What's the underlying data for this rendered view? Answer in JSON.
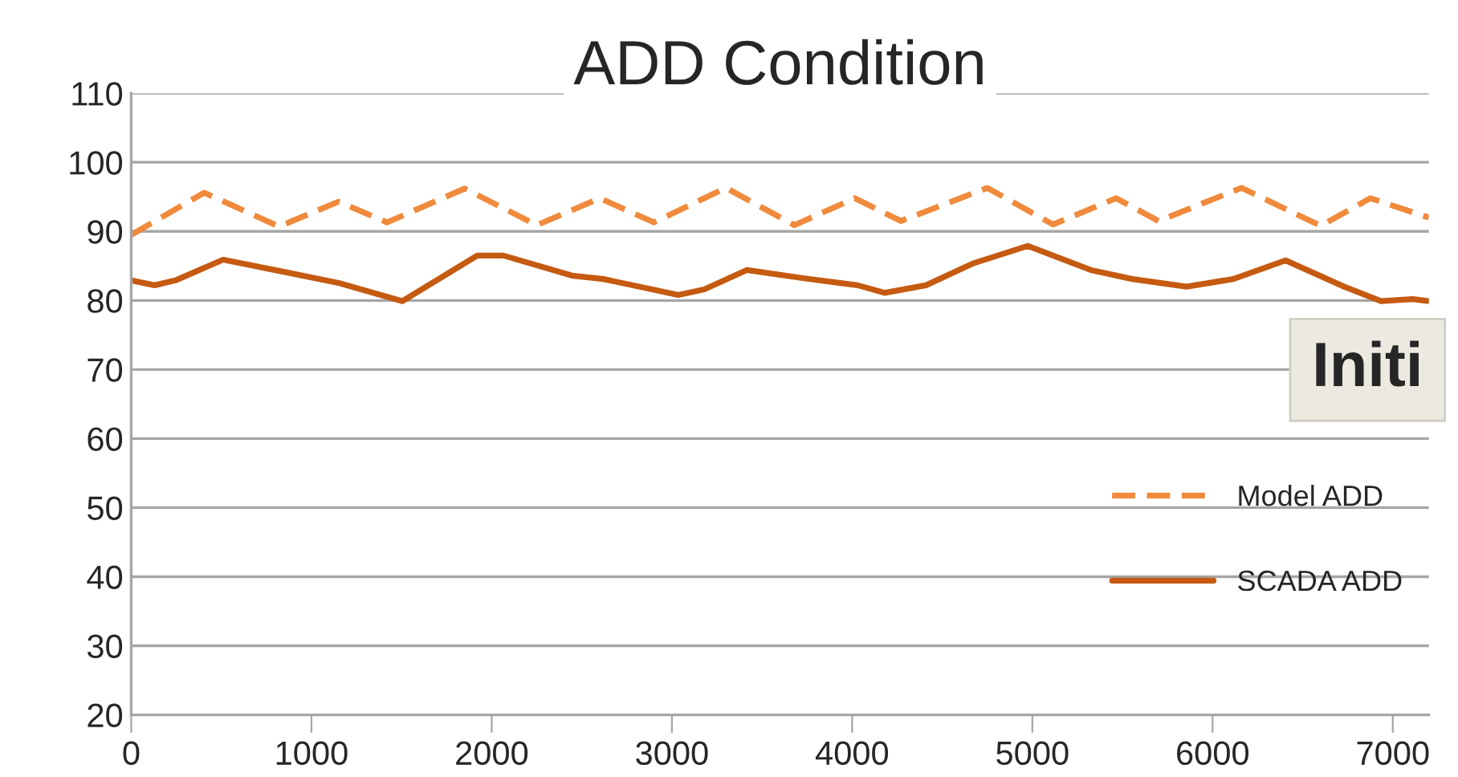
{
  "chart_data": {
    "type": "line",
    "title": "ADD Condition",
    "xlim": [
      0,
      7200
    ],
    "xticks": [
      0,
      1000,
      2000,
      3000,
      4000,
      5000,
      6000,
      7000
    ],
    "ylim": [
      20,
      110
    ],
    "yticks": [
      20,
      30,
      40,
      50,
      60,
      70,
      80,
      90,
      100,
      110
    ],
    "grid": "y",
    "legend": "right",
    "marker": "none",
    "annotations": [
      "Initi"
    ],
    "series": [
      {
        "name": "Model ADD",
        "color": "#f08a3c",
        "line_style": "dashed",
        "x": [
          0,
          405,
          820,
          1150,
          1420,
          1850,
          2250,
          2600,
          2900,
          3300,
          3680,
          4015,
          4270,
          4750,
          5115,
          5465,
          5700,
          6160,
          6600,
          6875,
          7200
        ],
        "values": [
          89.5,
          95.6,
          90.7,
          94.3,
          91.3,
          96.2,
          90.9,
          94.8,
          91.3,
          96.3,
          90.9,
          94.8,
          91.5,
          96.3,
          91.0,
          94.8,
          91.5,
          96.3,
          90.8,
          94.8,
          92.0
        ]
      },
      {
        "name": "SCADA ADD",
        "color": "#c55a11",
        "line_style": "solid",
        "x": [
          0,
          130,
          245,
          510,
          835,
          1155,
          1505,
          1920,
          2065,
          2445,
          2620,
          2890,
          3035,
          3180,
          3415,
          3735,
          4030,
          4180,
          4410,
          4675,
          4975,
          5325,
          5555,
          5855,
          6115,
          6405,
          6730,
          6935,
          7110,
          7200
        ],
        "values": [
          82.9,
          82.2,
          82.9,
          85.9,
          84.2,
          82.5,
          79.9,
          86.5,
          86.5,
          83.6,
          83.1,
          81.6,
          80.8,
          81.6,
          84.4,
          83.2,
          82.2,
          81.1,
          82.2,
          85.4,
          87.9,
          84.4,
          83.1,
          82.0,
          83.1,
          85.8,
          82.0,
          79.9,
          80.2,
          79.9
        ]
      }
    ]
  }
}
